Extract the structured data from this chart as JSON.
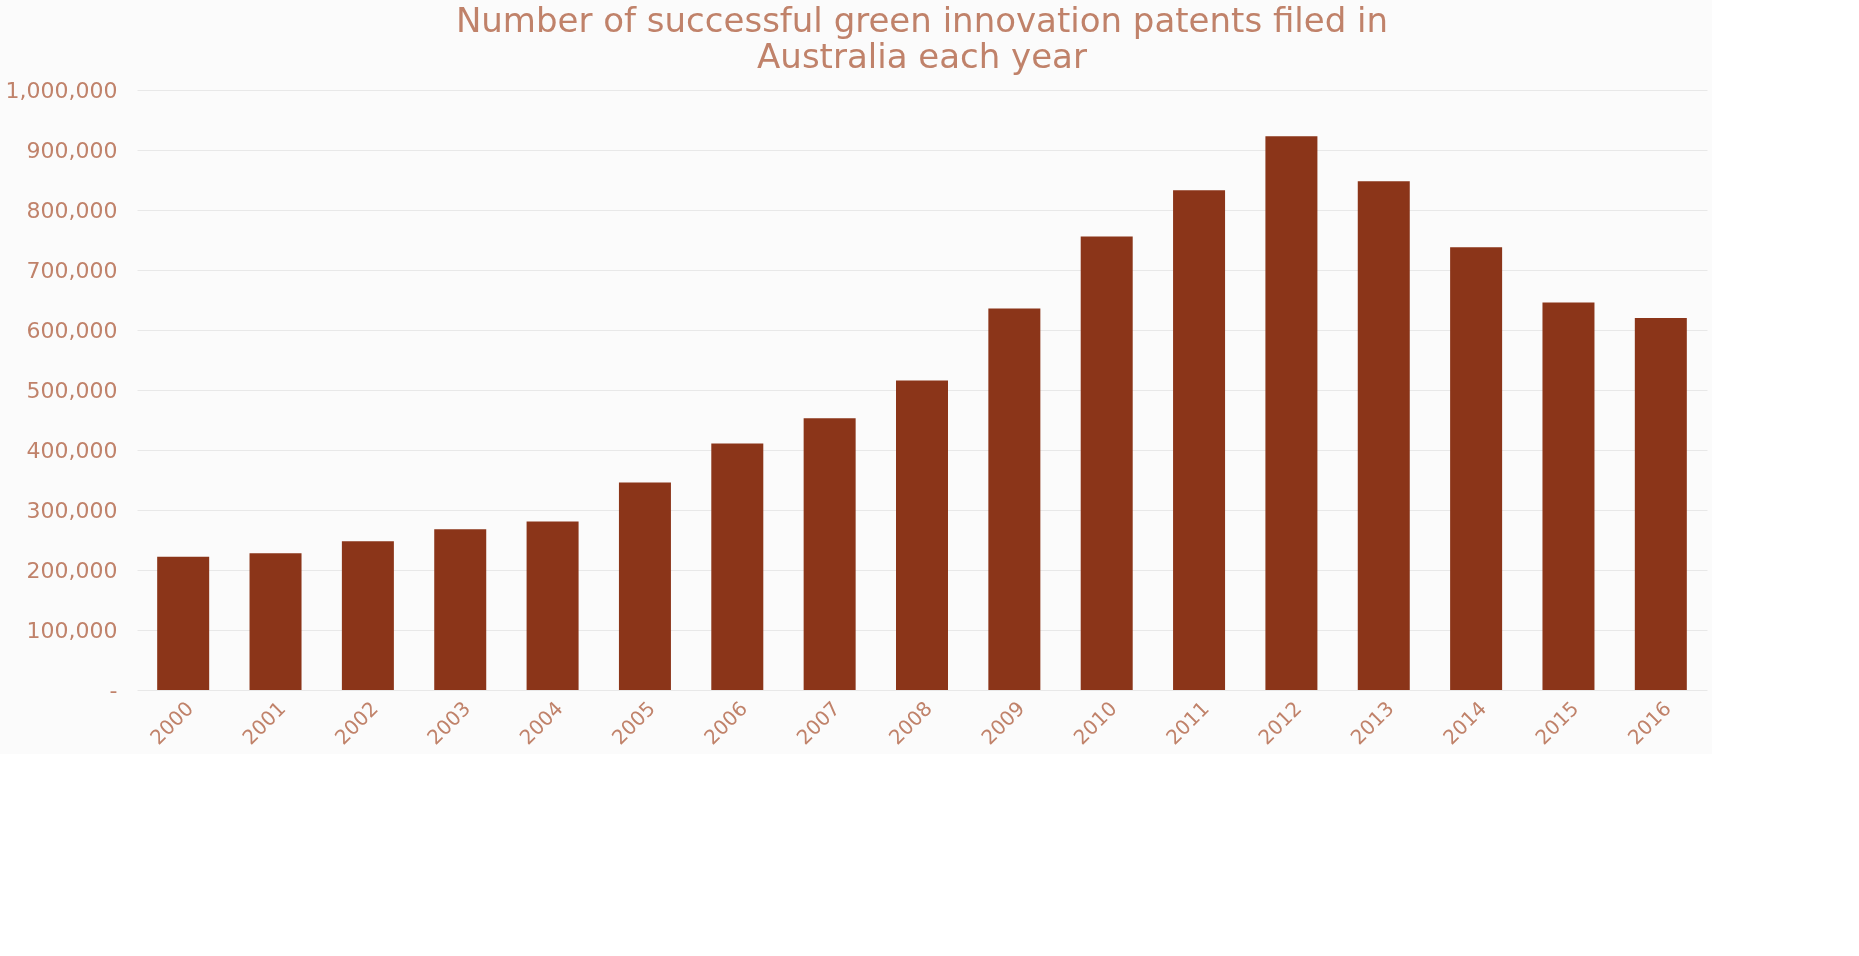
{
  "chart_data": {
    "type": "bar",
    "title": [
      "Number of successful green innovation patents filed in",
      "Australia each year"
    ],
    "categories": [
      "2000",
      "2001",
      "2002",
      "2003",
      "2004",
      "2005",
      "2006",
      "2007",
      "2008",
      "2009",
      "2010",
      "2011",
      "2012",
      "2013",
      "2014",
      "2015",
      "2016"
    ],
    "values": [
      222000,
      228000,
      248000,
      268000,
      281000,
      346000,
      411000,
      453000,
      516000,
      636000,
      756000,
      833000,
      923000,
      848000,
      738000,
      646000,
      620000
    ],
    "color": "#8b3519",
    "ylim": [
      0,
      1000000
    ],
    "yticks": [
      {
        "value": 0,
        "label": "-"
      },
      {
        "value": 100000,
        "label": "100,000"
      },
      {
        "value": 200000,
        "label": "200,000"
      },
      {
        "value": 300000,
        "label": "300,000"
      },
      {
        "value": 400000,
        "label": "400,000"
      },
      {
        "value": 500000,
        "label": "500,000"
      },
      {
        "value": 600000,
        "label": "600,000"
      },
      {
        "value": 700000,
        "label": "700,000"
      },
      {
        "value": 800000,
        "label": "800,000"
      },
      {
        "value": 900000,
        "label": "900,000"
      },
      {
        "value": 1000000,
        "label": "1,000,000"
      }
    ],
    "grid": "y"
  }
}
